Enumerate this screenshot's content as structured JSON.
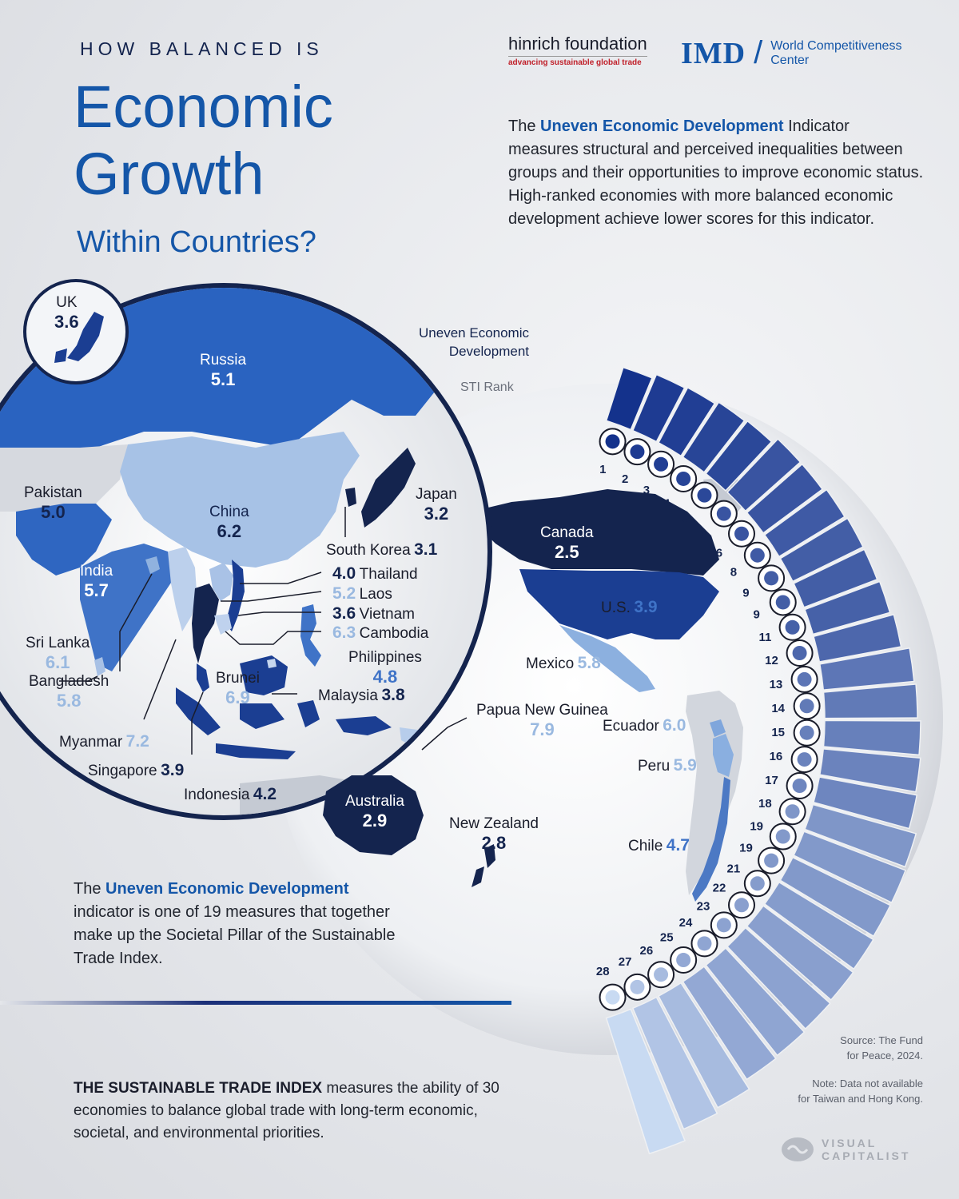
{
  "header": {
    "kicker": "HOW BALANCED IS",
    "title_line1": "Economic",
    "title_line2": "Growth",
    "subtitle": "Within Countries?"
  },
  "logos": {
    "hinrich_name": "hinrich foundation",
    "hinrich_tagline": "advancing sustainable global trade",
    "imd_mark": "IMD",
    "imd_text_line1": "World Competitiveness",
    "imd_text_line2": "Center"
  },
  "intro": {
    "pre": "The ",
    "highlight": "Uneven Economic Development",
    "post": " Indicator measures structural and perceived inequalities between groups and their opportunities to improve  economic status. High-ranked economies with more balanced economic development achieve lower scores for this indicator."
  },
  "legend": {
    "indicator_label_line1": "Uneven Economic",
    "indicator_label_line2": "Development",
    "rank_label": "STI Rank"
  },
  "bottom_note": {
    "pre": "The ",
    "highlight": "Uneven Economic Development",
    "post": " indicator is one of 19 measures that together make up the Societal Pillar of the Sustainable Trade Index."
  },
  "sti_note": {
    "bold": "THE SUSTAINABLE TRADE INDEX",
    "text": " measures the ability of 30 economies to balance global trade with long-term economic, societal, and environmental priorities."
  },
  "source": {
    "line1": "Source: The Fund",
    "line2": "for Peace, 2024."
  },
  "note": {
    "line1": "Note: Data not available",
    "line2": "for Taiwan and Hong Kong."
  },
  "brand": {
    "line1": "VISUAL",
    "line2": "CAPITALIST"
  },
  "colors": {
    "accent": "#1456a8",
    "dark_navy": "#14244e",
    "light_blue": "#9ab9e0"
  },
  "chart_data": {
    "type": "bar",
    "title": "",
    "value_label": "Uneven Economic Development",
    "rank_label": "STI Rank",
    "entries": [
      {
        "rank": "1",
        "country": "Canada",
        "value": 2.5,
        "flag": "canada-flag"
      },
      {
        "rank": "2",
        "country": "New Zealand",
        "value": 2.8,
        "flag": "new-zealand-flag"
      },
      {
        "rank": "3",
        "country": "Australia",
        "value": 2.9,
        "flag": "australia-flag"
      },
      {
        "rank": "4",
        "country": "South Korea",
        "value": 3.1,
        "flag": "south-korea-flag"
      },
      {
        "rank": "5",
        "country": "Japan",
        "value": 3.2,
        "flag": "japan-flag"
      },
      {
        "rank": "6",
        "country": "UK",
        "value": 3.6,
        "flag": "uk-flag"
      },
      {
        "rank": "6",
        "country": "Vietnam",
        "value": 3.6,
        "flag": "vietnam-flag"
      },
      {
        "rank": "8",
        "country": "Malaysia",
        "value": 3.8,
        "flag": "malaysia-flag"
      },
      {
        "rank": "9",
        "country": "Singapore",
        "value": 3.9,
        "flag": "singapore-flag"
      },
      {
        "rank": "9",
        "country": "U.S.",
        "value": 3.9,
        "flag": "us-flag"
      },
      {
        "rank": "11",
        "country": "Thailand",
        "value": 4.0,
        "flag": "thailand-flag"
      },
      {
        "rank": "12",
        "country": "Indonesia",
        "value": 4.2,
        "flag": "indonesia-flag"
      },
      {
        "rank": "13",
        "country": "Chile",
        "value": 4.7,
        "flag": "chile-flag"
      },
      {
        "rank": "14",
        "country": "Philippines",
        "value": 4.8,
        "flag": "philippines-flag"
      },
      {
        "rank": "15",
        "country": "Pakistan",
        "value": 5.0,
        "flag": "pakistan-flag"
      },
      {
        "rank": "16",
        "country": "Russia",
        "value": 5.1,
        "flag": "russia-flag"
      },
      {
        "rank": "17",
        "country": "Laos",
        "value": 5.2,
        "flag": "laos-flag"
      },
      {
        "rank": "18",
        "country": "India",
        "value": 5.7,
        "flag": "india-flag"
      },
      {
        "rank": "19",
        "country": "Bangladesh",
        "value": 5.8,
        "flag": "bangladesh-flag"
      },
      {
        "rank": "19",
        "country": "Mexico",
        "value": 5.8,
        "flag": "mexico-flag"
      },
      {
        "rank": "21",
        "country": "Peru",
        "value": 5.9,
        "flag": "peru-flag"
      },
      {
        "rank": "22",
        "country": "Ecuador",
        "value": 6.0,
        "flag": "ecuador-flag"
      },
      {
        "rank": "23",
        "country": "Sri Lanka",
        "value": 6.1,
        "flag": "sri-lanka-flag"
      },
      {
        "rank": "24",
        "country": "China",
        "value": 6.2,
        "flag": "china-flag"
      },
      {
        "rank": "25",
        "country": "Cambodia",
        "value": 6.3,
        "flag": "cambodia-flag"
      },
      {
        "rank": "26",
        "country": "Brunei",
        "value": 6.9,
        "flag": "brunei-flag"
      },
      {
        "rank": "27",
        "country": "Myanmar",
        "value": 7.2,
        "flag": "myanmar-flag"
      },
      {
        "rank": "28",
        "country": "Papua New Guinea",
        "value": 7.9,
        "flag": "papua-new-guinea-flag"
      }
    ],
    "map_labels": [
      {
        "key": "uk",
        "name": "UK",
        "value": "3.6"
      },
      {
        "key": "russia",
        "name": "Russia",
        "value": "5.1"
      },
      {
        "key": "pakistan",
        "name": "Pakistan",
        "value": "5.0"
      },
      {
        "key": "china",
        "name": "China",
        "value": "6.2"
      },
      {
        "key": "japan",
        "name": "Japan",
        "value": "3.2"
      },
      {
        "key": "south_korea",
        "name": "South Korea",
        "value": "3.1"
      },
      {
        "key": "india",
        "name": "India",
        "value": "5.7"
      },
      {
        "key": "thailand",
        "name": "Thailand",
        "value": "4.0"
      },
      {
        "key": "laos",
        "name": "Laos",
        "value": "5.2"
      },
      {
        "key": "vietnam",
        "name": "Vietnam",
        "value": "3.6"
      },
      {
        "key": "cambodia",
        "name": "Cambodia",
        "value": "6.3"
      },
      {
        "key": "sri_lanka",
        "name": "Sri Lanka",
        "value": "6.1"
      },
      {
        "key": "philippines",
        "name": "Philippines",
        "value": "4.8"
      },
      {
        "key": "bangladesh",
        "name": "Bangladesh",
        "value": "5.8"
      },
      {
        "key": "brunei",
        "name": "Brunei",
        "value": "6.9"
      },
      {
        "key": "malaysia",
        "name": "Malaysia",
        "value": "3.8"
      },
      {
        "key": "myanmar",
        "name": "Myanmar",
        "value": "7.2"
      },
      {
        "key": "singapore",
        "name": "Singapore",
        "value": "3.9"
      },
      {
        "key": "indonesia",
        "name": "Indonesia",
        "value": "4.2"
      },
      {
        "key": "png",
        "name": "Papua New Guinea",
        "value": "7.9"
      },
      {
        "key": "australia",
        "name": "Australia",
        "value": "2.9"
      },
      {
        "key": "new_zealand",
        "name": "New Zealand",
        "value": "2.8"
      },
      {
        "key": "canada",
        "name": "Canada",
        "value": "2.5"
      },
      {
        "key": "us",
        "name": "U.S.",
        "value": "3.9"
      },
      {
        "key": "mexico",
        "name": "Mexico",
        "value": "5.8"
      },
      {
        "key": "ecuador",
        "name": "Ecuador",
        "value": "6.0"
      },
      {
        "key": "peru",
        "name": "Peru",
        "value": "5.9"
      },
      {
        "key": "chile",
        "name": "Chile",
        "value": "4.7"
      }
    ]
  }
}
